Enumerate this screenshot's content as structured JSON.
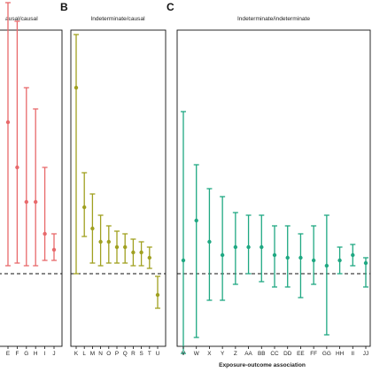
{
  "chart_data": {
    "type": "scatter",
    "subtype": "forest-plot",
    "xlabel": "Exposure-outcome association",
    "reference_line": {
      "y": 0,
      "style": "dashed"
    },
    "panels": [
      {
        "letter": "",
        "title": "ausal/causal",
        "color": "#E8696B",
        "categories": [
          "E",
          "F",
          "G",
          "H",
          "I",
          "J"
        ],
        "estimate": [
          0.57,
          0.4,
          0.27,
          0.27,
          0.15,
          0.09
        ],
        "lower": [
          0.03,
          0.04,
          0.03,
          0.03,
          0.05,
          0.05
        ],
        "upper": [
          1.02,
          0.95,
          0.7,
          0.62,
          0.4,
          0.15
        ]
      },
      {
        "letter": "B",
        "title": "Indeterminate/causal",
        "color": "#A0A020",
        "categories": [
          "K",
          "L",
          "M",
          "N",
          "O",
          "P",
          "Q",
          "R",
          "S",
          "T",
          "U"
        ],
        "estimate": [
          0.7,
          0.25,
          0.17,
          0.12,
          0.12,
          0.1,
          0.1,
          0.08,
          0.08,
          0.06,
          -0.08
        ],
        "lower": [
          0.0,
          0.14,
          0.04,
          0.03,
          0.04,
          0.04,
          0.04,
          0.03,
          0.03,
          0.02,
          -0.13
        ],
        "upper": [
          0.9,
          0.38,
          0.3,
          0.22,
          0.18,
          0.16,
          0.15,
          0.13,
          0.12,
          0.1,
          -0.01
        ]
      },
      {
        "letter": "C",
        "title": "Indeterminate/indeterminate",
        "color": "#1FA882",
        "categories": [
          "V",
          "W",
          "X",
          "Y",
          "Z",
          "AA",
          "BB",
          "CC",
          "DD",
          "EE",
          "FF",
          "GG",
          "HH",
          "II",
          "JJ"
        ],
        "estimate": [
          0.05,
          0.2,
          0.12,
          0.07,
          0.1,
          0.1,
          0.1,
          0.07,
          0.06,
          0.06,
          0.05,
          0.03,
          0.05,
          0.07,
          0.04
        ],
        "lower": [
          -0.3,
          -0.24,
          -0.1,
          -0.1,
          -0.04,
          0.0,
          -0.03,
          -0.05,
          -0.05,
          -0.09,
          -0.04,
          -0.23,
          0.0,
          0.03,
          -0.05
        ],
        "upper": [
          0.61,
          0.41,
          0.32,
          0.29,
          0.23,
          0.22,
          0.22,
          0.18,
          0.18,
          0.15,
          0.18,
          0.22,
          0.1,
          0.11,
          0.06
        ]
      }
    ]
  }
}
